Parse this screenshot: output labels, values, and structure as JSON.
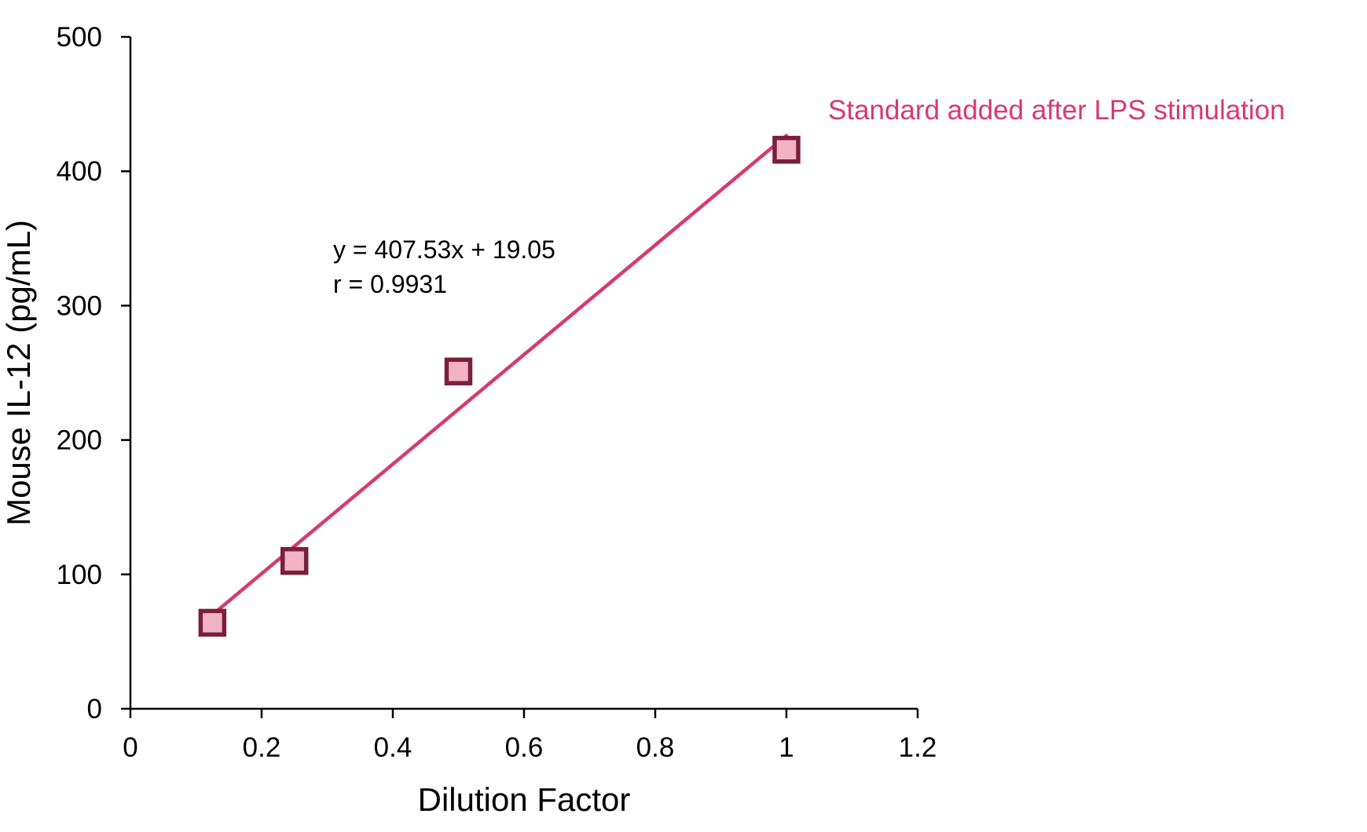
{
  "chart_data": {
    "type": "scatter",
    "title": "",
    "xlabel": "Dilution Factor",
    "ylabel": "Mouse IL-12 (pg/mL)",
    "xlim": [
      0,
      1.2
    ],
    "ylim": [
      0,
      500
    ],
    "x_ticks": [
      "0",
      "0.2",
      "0.4",
      "0.6",
      "0.8",
      "1",
      "1.2"
    ],
    "y_ticks": [
      "0",
      "100",
      "200",
      "300",
      "400",
      "500"
    ],
    "grid": false,
    "legend": "none",
    "series": [
      {
        "name": "Standard added after LPS stimulation",
        "color": "#d63a70",
        "marker": "square",
        "marker_fill": "#f2b3c6",
        "marker_edge": "#7a1f3d",
        "x": [
          0.125,
          0.25,
          0.5,
          1.0
        ],
        "y": [
          64,
          110,
          251,
          416
        ]
      }
    ],
    "trendline": {
      "type": "linear",
      "slope": 407.53,
      "intercept": 19.05,
      "x_range": [
        0.125,
        1.0
      ],
      "color": "#d63a70"
    },
    "annotations": {
      "equation": "y = 407.53x + 19.05",
      "r_value": "r = 0.9931"
    }
  }
}
